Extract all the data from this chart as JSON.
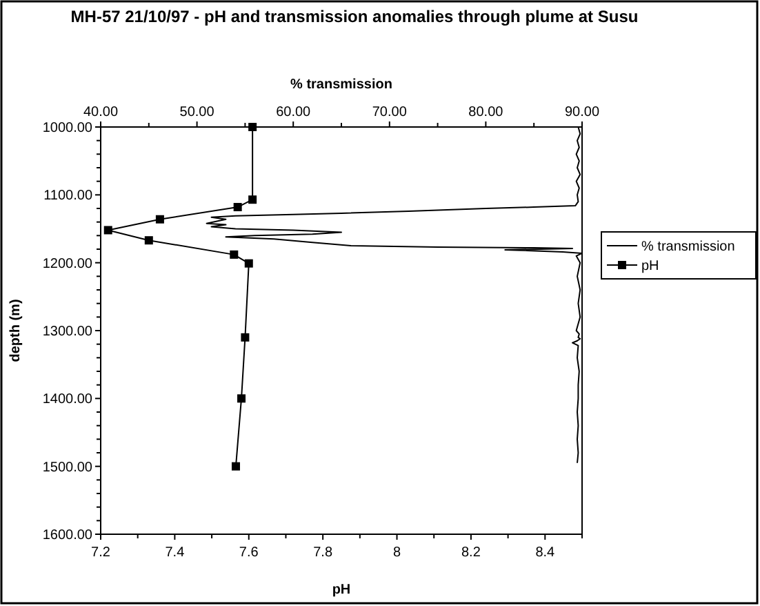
{
  "chart_data": {
    "type": "line",
    "title": "MH-57 21/10/97 - pH and transmission anomalies through plume at Susu",
    "xlabel": "pH",
    "x2label": "% transmission",
    "ylabel": "depth (m)",
    "xlim": [
      7.2,
      8.5
    ],
    "xticks": [
      7.2,
      {
        "value": 7.3,
        "label": null
      },
      7.4,
      {
        "value": 7.5,
        "label": null
      },
      7.6,
      {
        "value": 7.7,
        "label": null
      },
      7.8,
      {
        "value": 7.9,
        "label": null
      },
      8,
      {
        "value": 8.1,
        "label": null
      },
      8.2,
      {
        "value": 8.3,
        "label": null
      },
      8.4,
      {
        "value": 8.5,
        "label": null
      }
    ],
    "x2lim": [
      40,
      90
    ],
    "x2ticks": [
      {
        "value": 40,
        "label": "40.00"
      },
      {
        "value": 45,
        "label": null
      },
      {
        "value": 50,
        "label": "50.00"
      },
      {
        "value": 55,
        "label": null
      },
      {
        "value": 60,
        "label": "60.00"
      },
      {
        "value": 65,
        "label": null
      },
      {
        "value": 70,
        "label": "70.00"
      },
      {
        "value": 75,
        "label": null
      },
      {
        "value": 80,
        "label": "80.00"
      },
      {
        "value": 85,
        "label": null
      },
      {
        "value": 90,
        "label": "90.00"
      }
    ],
    "ylim": [
      1600,
      1000
    ],
    "yticks": [
      {
        "value": 1000,
        "label": "1000.00"
      },
      {
        "value": 1020,
        "label": null
      },
      {
        "value": 1040,
        "label": null
      },
      {
        "value": 1060,
        "label": null
      },
      {
        "value": 1080,
        "label": null
      },
      {
        "value": 1100,
        "label": "1100.00"
      },
      {
        "value": 1120,
        "label": null
      },
      {
        "value": 1140,
        "label": null
      },
      {
        "value": 1160,
        "label": null
      },
      {
        "value": 1180,
        "label": null
      },
      {
        "value": 1200,
        "label": "1200.00"
      },
      {
        "value": 1220,
        "label": null
      },
      {
        "value": 1240,
        "label": null
      },
      {
        "value": 1260,
        "label": null
      },
      {
        "value": 1280,
        "label": null
      },
      {
        "value": 1300,
        "label": "1300.00"
      },
      {
        "value": 1320,
        "label": null
      },
      {
        "value": 1340,
        "label": null
      },
      {
        "value": 1360,
        "label": null
      },
      {
        "value": 1380,
        "label": null
      },
      {
        "value": 1400,
        "label": "1400.00"
      },
      {
        "value": 1420,
        "label": null
      },
      {
        "value": 1440,
        "label": null
      },
      {
        "value": 1460,
        "label": null
      },
      {
        "value": 1480,
        "label": null
      },
      {
        "value": 1500,
        "label": "1500.00"
      },
      {
        "value": 1520,
        "label": null
      },
      {
        "value": 1540,
        "label": null
      },
      {
        "value": 1560,
        "label": null
      },
      {
        "value": 1580,
        "label": null
      },
      {
        "value": 1600,
        "label": "1600.00"
      }
    ],
    "legend": "right",
    "series": [
      {
        "name": "% transmission",
        "axis": "x2",
        "color": "#000000",
        "marker": "none",
        "x": [
          89.6,
          89.8,
          89.5,
          89.7,
          89.4,
          89.7,
          89.5,
          89.8,
          89.4,
          89.7,
          89.5,
          89.6,
          89.3,
          85,
          80,
          72,
          65,
          60,
          54,
          51.5,
          53,
          52,
          51,
          53,
          51.5,
          54,
          60,
          65,
          62,
          56,
          53,
          58,
          62,
          66,
          75,
          85,
          89,
          82,
          88,
          90,
          89.4,
          89.8,
          89.5,
          89.8,
          89.6,
          89.8,
          89.4,
          89.7,
          89.6,
          89.8,
          89.5,
          89,
          89.6,
          89.5,
          89.7,
          89.6,
          89.6,
          89.5,
          89.6,
          89.5,
          89.6,
          89.5
        ],
        "values": [
          1000,
          1010,
          1020,
          1030,
          1040,
          1050,
          1060,
          1070,
          1080,
          1090,
          1100,
          1110,
          1116,
          1118,
          1120,
          1124,
          1127,
          1129,
          1131,
          1133,
          1136,
          1139,
          1142,
          1144,
          1147,
          1150,
          1152,
          1155,
          1158,
          1160,
          1162,
          1165,
          1170,
          1175,
          1177,
          1178,
          1179,
          1181,
          1184,
          1186,
          1190,
          1200,
          1220,
          1240,
          1260,
          1280,
          1300,
          1305,
          1310,
          1312,
          1315,
          1318,
          1322,
          1340,
          1360,
          1380,
          1400,
          1420,
          1440,
          1460,
          1480,
          1495
        ]
      },
      {
        "name": "pH",
        "color": "#000000",
        "marker": "square",
        "x": [
          7.61,
          7.61,
          7.57,
          7.36,
          7.22,
          7.33,
          7.56,
          7.6,
          7.59,
          7.58,
          7.565
        ],
        "values": [
          1000,
          1107,
          1118,
          1136,
          1152,
          1167,
          1188,
          1201,
          1310,
          1400,
          1500
        ]
      }
    ]
  }
}
